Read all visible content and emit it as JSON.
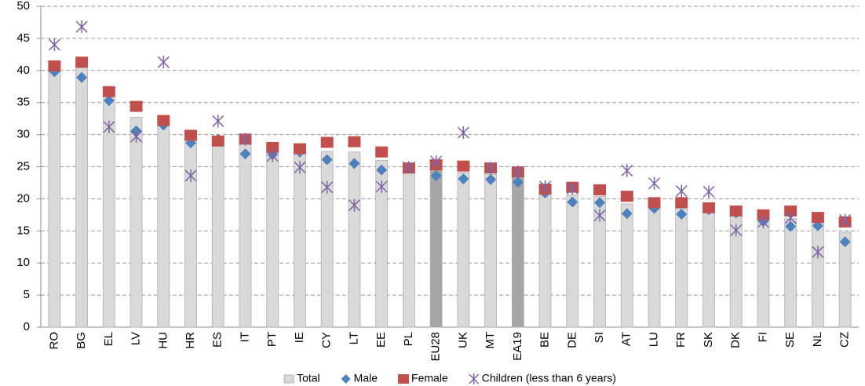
{
  "chart_data": {
    "type": "bar-marker",
    "categories": [
      "RO",
      "BG",
      "EL",
      "LV",
      "HU",
      "HR",
      "ES",
      "IT",
      "PT",
      "IE",
      "CY",
      "LT",
      "EE",
      "PL",
      "EU28",
      "UK",
      "MT",
      "EA19",
      "BE",
      "DE",
      "SI",
      "AT",
      "LU",
      "FR",
      "SK",
      "DK",
      "FI",
      "SE",
      "NL",
      "CZ"
    ],
    "series": [
      {
        "name": "Total",
        "color": "#d9d9d9",
        "colors": [
          "#d9d9d9",
          "#d9d9d9",
          "#d9d9d9",
          "#d9d9d9",
          "#d9d9d9",
          "#d9d9d9",
          "#d9d9d9",
          "#d9d9d9",
          "#d9d9d9",
          "#d9d9d9",
          "#d9d9d9",
          "#d9d9d9",
          "#d9d9d9",
          "#d9d9d9",
          "#a6a6a6",
          "#d9d9d9",
          "#d9d9d9",
          "#a6a6a6",
          "#d9d9d9",
          "#d9d9d9",
          "#d9d9d9",
          "#d9d9d9",
          "#d9d9d9",
          "#d9d9d9",
          "#d9d9d9",
          "#d9d9d9",
          "#d9d9d9",
          "#d9d9d9",
          "#d9d9d9",
          "#d9d9d9"
        ],
        "values": [
          40,
          40.4,
          36,
          32.7,
          31.8,
          29.3,
          29.2,
          28.7,
          27.5,
          27.7,
          27.4,
          27.3,
          26,
          24.7,
          24.7,
          24.1,
          23.8,
          23.5,
          21.2,
          20.6,
          20.4,
          19.2,
          19,
          18.5,
          18.4,
          17.9,
          16.8,
          16.9,
          16.4,
          14.8
        ]
      },
      {
        "name": "Male",
        "color": "#4f81bd",
        "values": [
          39.8,
          38.9,
          35.3,
          30.6,
          31.5,
          28.7,
          29.3,
          27,
          26.9,
          27.3,
          26.1,
          25.5,
          24.5,
          24.9,
          23.6,
          23.1,
          23,
          22.6,
          20.9,
          19.5,
          19.4,
          17.7,
          18.5,
          17.6,
          18.3,
          17.8,
          16.5,
          15.7,
          15.8,
          13.3
        ]
      },
      {
        "name": "Female",
        "color": "#c0504d",
        "values": [
          40.7,
          41.3,
          36.7,
          34.4,
          32.2,
          29.9,
          29,
          29.3,
          28,
          27.8,
          28.8,
          28.9,
          27.3,
          24.8,
          25.3,
          25.1,
          24.8,
          24.2,
          21.5,
          21.8,
          21.4,
          20.4,
          19.4,
          19.4,
          18.6,
          18.1,
          17.5,
          18.1,
          17.1,
          16.4
        ]
      },
      {
        "name": "Children (less than 6 years)",
        "color": "#8064a2",
        "values": [
          44,
          46.8,
          31.2,
          29.7,
          41.3,
          23.6,
          32.1,
          29.3,
          26.7,
          24.9,
          21.8,
          19,
          21.9,
          24.9,
          25.8,
          30.3,
          24.8,
          24.2,
          21.9,
          21.6,
          17.4,
          24.4,
          22.4,
          21.2,
          21.1,
          15.1,
          16.4,
          17,
          11.7,
          16.7
        ]
      }
    ],
    "ylim": [
      0,
      50
    ],
    "yticks": [
      0,
      5,
      10,
      15,
      20,
      25,
      30,
      35,
      40,
      45,
      50
    ],
    "grid": true
  }
}
